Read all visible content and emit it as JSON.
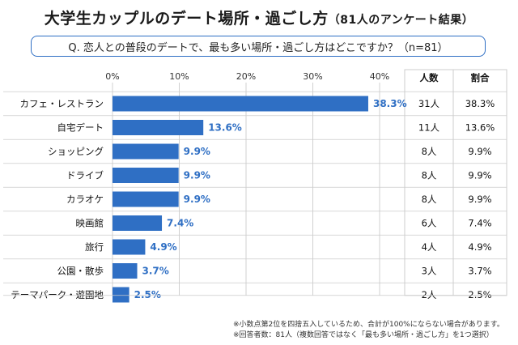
{
  "title": {
    "main": "大学生カップルのデート場所・過ごし方",
    "sub": "（81人のアンケート結果）"
  },
  "question": "Q. 恋人との普段のデートで、最も多い場所・過ごし方はどこですか？（n=81）",
  "colors": {
    "bar": "#2f6fc4",
    "label": "#2f6fc4",
    "grid": "#d0d0d0",
    "border": "#cccccc"
  },
  "chart_data": {
    "type": "bar",
    "orientation": "horizontal",
    "xlim": [
      0,
      40
    ],
    "ticks": [
      "0%",
      "10%",
      "20%",
      "30%",
      "40%"
    ],
    "tick_values": [
      0,
      10,
      20,
      30,
      40
    ],
    "categories": [
      "カフェ・レストラン",
      "自宅デート",
      "ショッピング",
      "ドライブ",
      "カラオケ",
      "映画館",
      "旅行",
      "公園・散歩",
      "テーマパーク・遊園地"
    ],
    "values": [
      38.3,
      13.6,
      9.9,
      9.9,
      9.9,
      7.4,
      4.9,
      3.7,
      2.5
    ],
    "value_labels": [
      "38.3%",
      "13.6%",
      "9.9%",
      "9.9%",
      "9.9%",
      "7.4%",
      "4.9%",
      "3.7%",
      "2.5%"
    ],
    "grid": true
  },
  "table": {
    "headers": [
      "人数",
      "割合"
    ],
    "rows": [
      [
        "31人",
        "38.3%"
      ],
      [
        "11人",
        "13.6%"
      ],
      [
        "8人",
        "9.9%"
      ],
      [
        "8人",
        "9.9%"
      ],
      [
        "8人",
        "9.9%"
      ],
      [
        "6人",
        "7.4%"
      ],
      [
        "4人",
        "4.9%"
      ],
      [
        "3人",
        "3.7%"
      ],
      [
        "2人",
        "2.5%"
      ]
    ]
  },
  "notes": [
    "※小数点第2位を四捨五入しているため、合計が100%にならない場合があります。",
    "※回答者数：81人（複数回答ではなく「最も多い場所・過ごし方」を1つ選択）"
  ]
}
